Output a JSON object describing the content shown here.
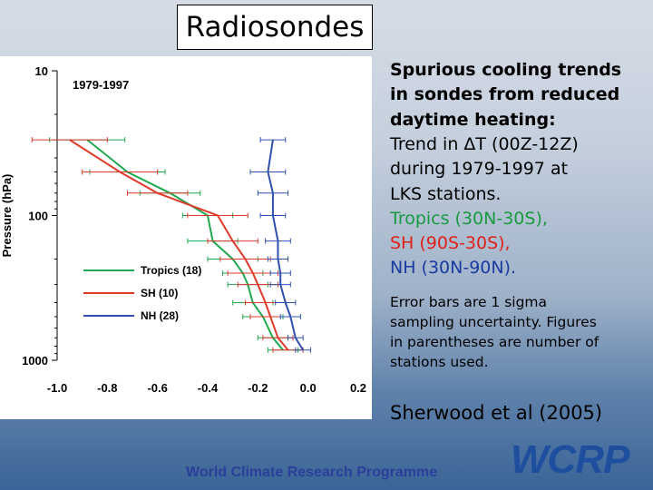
{
  "slide_title": "Radiosondes",
  "chart_data": {
    "type": "profile",
    "inset_label": "1979-1997",
    "ylabel": "Pressure (hPa)",
    "y_log": true,
    "xlim": [
      -1.0,
      0.2
    ],
    "ylim": [
      1000,
      10
    ],
    "xticks": [
      {
        "value": -1.0,
        "label": "-1.0"
      },
      -0.8,
      -0.6,
      -0.4,
      -0.2,
      {
        "value": 0,
        "label": "0.0"
      },
      0.2
    ],
    "yticks": [
      10,
      100,
      1000
    ],
    "series": [
      {
        "name": "Tropics (18)",
        "color": "#1fa84f",
        "levels": [
          30,
          50,
          70,
          100,
          150,
          200,
          250,
          300,
          400,
          500,
          700,
          850
        ],
        "values": [
          -0.88,
          -0.72,
          -0.55,
          -0.4,
          -0.38,
          -0.3,
          -0.26,
          -0.24,
          -0.22,
          -0.18,
          -0.14,
          -0.1
        ],
        "errors": [
          0.15,
          0.15,
          0.12,
          0.1,
          0.1,
          0.1,
          0.08,
          0.08,
          0.08,
          0.08,
          0.06,
          0.06
        ]
      },
      {
        "name": "SH (10)",
        "color": "#e03a2a",
        "levels": [
          30,
          50,
          70,
          100,
          150,
          200,
          250,
          300,
          400,
          500,
          700,
          850
        ],
        "values": [
          -0.95,
          -0.75,
          -0.6,
          -0.36,
          -0.3,
          -0.25,
          -0.22,
          -0.2,
          -0.17,
          -0.15,
          -0.12,
          -0.08
        ],
        "errors": [
          0.15,
          0.15,
          0.12,
          0.12,
          0.1,
          0.1,
          0.1,
          0.08,
          0.08,
          0.08,
          0.06,
          0.06
        ]
      },
      {
        "name": "NH (28)",
        "color": "#3050b0",
        "levels": [
          30,
          50,
          70,
          100,
          150,
          200,
          250,
          300,
          400,
          500,
          700,
          850
        ],
        "values": [
          -0.14,
          -0.16,
          -0.14,
          -0.14,
          -0.12,
          -0.12,
          -0.11,
          -0.11,
          -0.09,
          -0.07,
          -0.05,
          -0.02
        ],
        "errors": [
          0.05,
          0.07,
          0.06,
          0.05,
          0.05,
          0.04,
          0.04,
          0.04,
          0.04,
          0.04,
          0.03,
          0.03
        ]
      }
    ]
  },
  "description": {
    "lines": [
      "Spurious cooling trends",
      "in sondes from reduced",
      "daytime heating:",
      "Trend in ΔT (00Z-12Z)",
      "during 1979-1997  at",
      "LKS stations.",
      "Tropics (30N-30S),",
      "SH (90S-30S),",
      "NH (30N-90N)."
    ],
    "note": [
      "Error bars are 1 sigma",
      "sampling uncertainty. Figures",
      "in parentheses are number of",
      "stations used."
    ],
    "citation": "Sherwood et al (2005)"
  },
  "footer": "World Climate Research Programme",
  "logo": "WCRP"
}
